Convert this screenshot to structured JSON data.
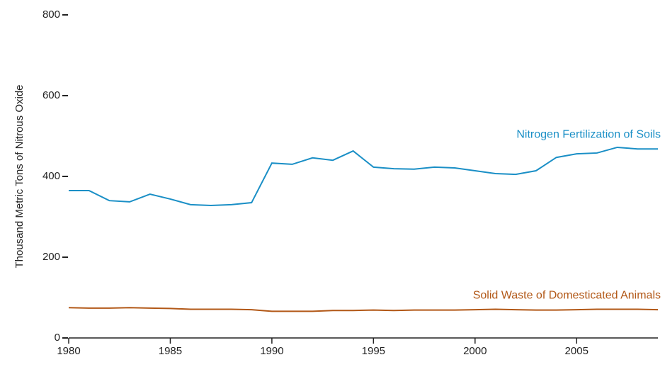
{
  "chart_data": {
    "type": "line",
    "y_label": "Thousand Metric Tons of Nitrous Oxide",
    "x": [
      1980,
      1981,
      1982,
      1983,
      1984,
      1985,
      1986,
      1987,
      1988,
      1989,
      1990,
      1991,
      1992,
      1993,
      1994,
      1995,
      1996,
      1997,
      1998,
      1999,
      2000,
      2001,
      2002,
      2003,
      2004,
      2005,
      2006,
      2007,
      2008,
      2009
    ],
    "series": [
      {
        "name": "Nitrogen Fertilization of Soils",
        "color": "#1a8fc6",
        "values": [
          365,
          365,
          340,
          337,
          356,
          344,
          330,
          328,
          330,
          335,
          433,
          430,
          446,
          440,
          463,
          423,
          419,
          418,
          423,
          421,
          414,
          407,
          405,
          414,
          447,
          456,
          458,
          472,
          468,
          468
        ]
      },
      {
        "name": "Solid Waste of Domesticated Animals",
        "color": "#b25817",
        "values": [
          75,
          74,
          74,
          75,
          74,
          73,
          71,
          71,
          71,
          70,
          66,
          66,
          66,
          68,
          68,
          69,
          68,
          69,
          69,
          69,
          70,
          71,
          70,
          69,
          69,
          70,
          71,
          71,
          71,
          70
        ]
      }
    ],
    "xlim": [
      1980,
      2009
    ],
    "xticks": [
      1980,
      1985,
      1990,
      1995,
      2000,
      2005
    ],
    "ylim": [
      0,
      800
    ],
    "yticks": [
      0,
      200,
      400,
      600,
      800
    ]
  }
}
